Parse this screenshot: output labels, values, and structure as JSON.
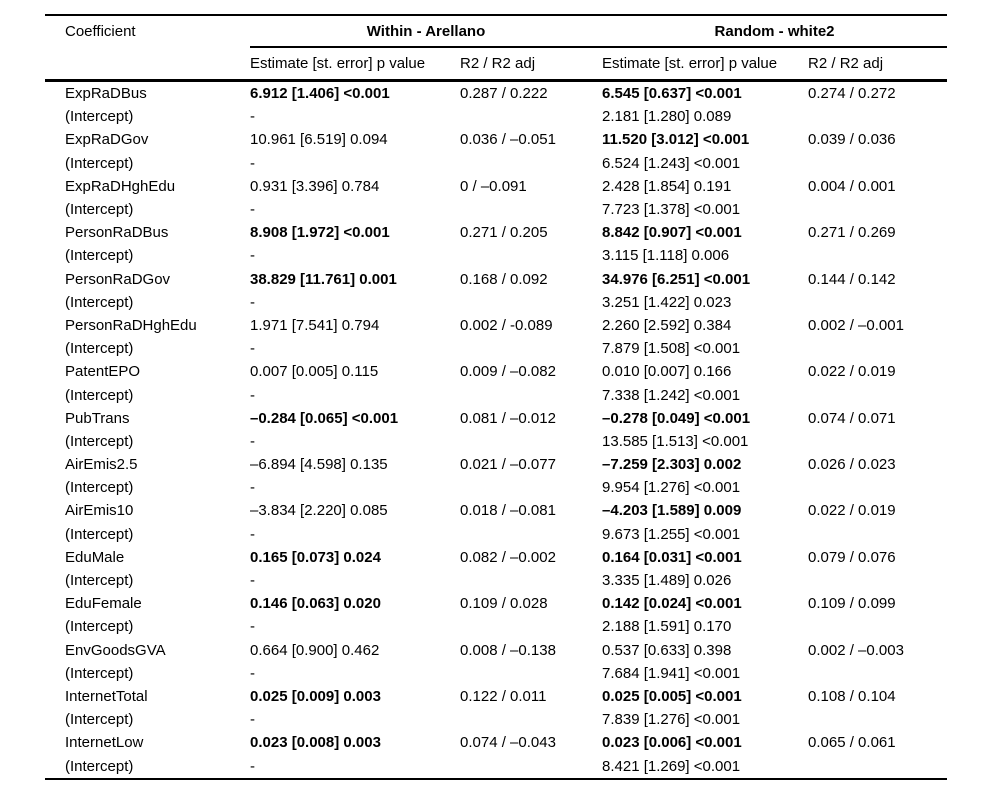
{
  "colors": {
    "background": "#ffffff",
    "text": "#000000",
    "rule": "#000000"
  },
  "table": {
    "col1_header": "Coefficient",
    "group_headers": [
      {
        "label": "Within - Arellano"
      },
      {
        "label": "Random - white2"
      }
    ],
    "sub_headers": {
      "estimate": "Estimate [st. error] p value",
      "r2": "R2 / R2 adj"
    },
    "rows": [
      {
        "label": "ExpRaDBus",
        "w_est": "6.912 [1.406] <0.001",
        "w_bold": true,
        "w_r2": "0.287 / 0.222",
        "r_est": "6.545 [0.637] <0.001",
        "r_bold": true,
        "r_r2": "0.274 / 0.272"
      },
      {
        "label": "(Intercept)",
        "w_est": "-",
        "w_bold": false,
        "w_r2": "",
        "r_est": "2.181 [1.280] 0.089",
        "r_bold": false,
        "r_r2": ""
      },
      {
        "label": "ExpRaDGov",
        "w_est": "10.961 [6.519] 0.094",
        "w_bold": false,
        "w_r2": "0.036 / –0.051",
        "r_est": "11.520 [3.012] <0.001",
        "r_bold": true,
        "r_r2": "0.039 / 0.036"
      },
      {
        "label": "(Intercept)",
        "w_est": "-",
        "w_bold": false,
        "w_r2": "",
        "r_est": "6.524 [1.243] <0.001",
        "r_bold": false,
        "r_r2": ""
      },
      {
        "label": "ExpRaDHghEdu",
        "w_est": "0.931 [3.396] 0.784",
        "w_bold": false,
        "w_r2": "0 / –0.091",
        "r_est": "2.428 [1.854] 0.191",
        "r_bold": false,
        "r_r2": "0.004 / 0.001"
      },
      {
        "label": "(Intercept)",
        "w_est": "-",
        "w_bold": false,
        "w_r2": "",
        "r_est": "7.723 [1.378] <0.001",
        "r_bold": false,
        "r_r2": ""
      },
      {
        "label": "PersonRaDBus",
        "w_est": "8.908 [1.972] <0.001",
        "w_bold": true,
        "w_r2": "0.271 / 0.205",
        "r_est": "8.842 [0.907] <0.001",
        "r_bold": true,
        "r_r2": "0.271 / 0.269"
      },
      {
        "label": "(Intercept)",
        "w_est": "-",
        "w_bold": false,
        "w_r2": "",
        "r_est": "3.115 [1.118] 0.006",
        "r_bold": false,
        "r_r2": ""
      },
      {
        "label": "PersonRaDGov",
        "w_est": "38.829 [11.761] 0.001",
        "w_bold": true,
        "w_r2": "0.168 / 0.092",
        "r_est": "34.976 [6.251] <0.001",
        "r_bold": true,
        "r_r2": "0.144 / 0.142"
      },
      {
        "label": "(Intercept)",
        "w_est": "-",
        "w_bold": false,
        "w_r2": "",
        "r_est": "3.251 [1.422] 0.023",
        "r_bold": false,
        "r_r2": ""
      },
      {
        "label": "PersonRaDHghEdu",
        "w_est": "1.971 [7.541] 0.794",
        "w_bold": false,
        "w_r2": "0.002 / -0.089",
        "r_est": "2.260 [2.592] 0.384",
        "r_bold": false,
        "r_r2": "0.002 / –0.001"
      },
      {
        "label": "(Intercept)",
        "w_est": "-",
        "w_bold": false,
        "w_r2": "",
        "r_est": "7.879 [1.508] <0.001",
        "r_bold": false,
        "r_r2": ""
      },
      {
        "label": "PatentEPO",
        "w_est": "0.007 [0.005] 0.115",
        "w_bold": false,
        "w_r2": "0.009 / –0.082",
        "r_est": "0.010 [0.007] 0.166",
        "r_bold": false,
        "r_r2": "0.022 / 0.019"
      },
      {
        "label": "(Intercept)",
        "w_est": "-",
        "w_bold": false,
        "w_r2": "",
        "r_est": "7.338 [1.242] <0.001",
        "r_bold": false,
        "r_r2": ""
      },
      {
        "label": "PubTrans",
        "w_est": "–0.284 [0.065] <0.001",
        "w_bold": true,
        "w_r2": "0.081 / –0.012",
        "r_est": "–0.278 [0.049] <0.001",
        "r_bold": true,
        "r_r2": "0.074 / 0.071"
      },
      {
        "label": "(Intercept)",
        "w_est": "-",
        "w_bold": false,
        "w_r2": "",
        "r_est": "13.585 [1.513] <0.001",
        "r_bold": false,
        "r_r2": ""
      },
      {
        "label": "AirEmis2.5",
        "w_est": "–6.894 [4.598] 0.135",
        "w_bold": false,
        "w_r2": "0.021 / –0.077",
        "r_est": "–7.259 [2.303] 0.002",
        "r_bold": true,
        "r_r2": "0.026 / 0.023"
      },
      {
        "label": "(Intercept)",
        "w_est": "-",
        "w_bold": false,
        "w_r2": "",
        "r_est": "9.954 [1.276] <0.001",
        "r_bold": false,
        "r_r2": ""
      },
      {
        "label": "AirEmis10",
        "w_est": "–3.834 [2.220] 0.085",
        "w_bold": false,
        "w_r2": "0.018 / –0.081",
        "r_est": "–4.203 [1.589] 0.009",
        "r_bold": true,
        "r_r2": "0.022 / 0.019"
      },
      {
        "label": "(Intercept)",
        "w_est": "-",
        "w_bold": false,
        "w_r2": "",
        "r_est": "9.673 [1.255] <0.001",
        "r_bold": false,
        "r_r2": ""
      },
      {
        "label": "EduMale",
        "w_est": "0.165 [0.073] 0.024",
        "w_bold": true,
        "w_r2": "0.082 / –0.002",
        "r_est": "0.164 [0.031] <0.001",
        "r_bold": true,
        "r_r2": "0.079 / 0.076"
      },
      {
        "label": "(Intercept)",
        "w_est": "-",
        "w_bold": false,
        "w_r2": "",
        "r_est": "3.335 [1.489] 0.026",
        "r_bold": false,
        "r_r2": ""
      },
      {
        "label": "EduFemale",
        "w_est": "0.146 [0.063] 0.020",
        "w_bold": true,
        "w_r2": "0.109 / 0.028",
        "r_est": "0.142 [0.024] <0.001",
        "r_bold": true,
        "r_r2": "0.109 / 0.099"
      },
      {
        "label": "(Intercept)",
        "w_est": "-",
        "w_bold": false,
        "w_r2": "",
        "r_est": "2.188 [1.591] 0.170",
        "r_bold": false,
        "r_r2": ""
      },
      {
        "label": "EnvGoodsGVA",
        "w_est": "0.664 [0.900] 0.462",
        "w_bold": false,
        "w_r2": "0.008 / –0.138",
        "r_est": "0.537 [0.633] 0.398",
        "r_bold": false,
        "r_r2": "0.002 / –0.003"
      },
      {
        "label": "(Intercept)",
        "w_est": "-",
        "w_bold": false,
        "w_r2": "",
        "r_est": "7.684 [1.941] <0.001",
        "r_bold": false,
        "r_r2": ""
      },
      {
        "label": "InternetTotal",
        "w_est": "0.025 [0.009] 0.003",
        "w_bold": true,
        "w_r2": "0.122 / 0.011",
        "r_est": "0.025 [0.005] <0.001",
        "r_bold": true,
        "r_r2": "0.108 / 0.104"
      },
      {
        "label": "(Intercept)",
        "w_est": "-",
        "w_bold": false,
        "w_r2": "",
        "r_est": "7.839 [1.276] <0.001",
        "r_bold": false,
        "r_r2": ""
      },
      {
        "label": "InternetLow",
        "w_est": "0.023 [0.008] 0.003",
        "w_bold": true,
        "w_r2": "0.074 / –0.043",
        "r_est": "0.023 [0.006] <0.001",
        "r_bold": true,
        "r_r2": "0.065 / 0.061"
      },
      {
        "label": "(Intercept)",
        "w_est": "-",
        "w_bold": false,
        "w_r2": "",
        "r_est": "8.421 [1.269] <0.001",
        "r_bold": false,
        "r_r2": ""
      }
    ]
  }
}
